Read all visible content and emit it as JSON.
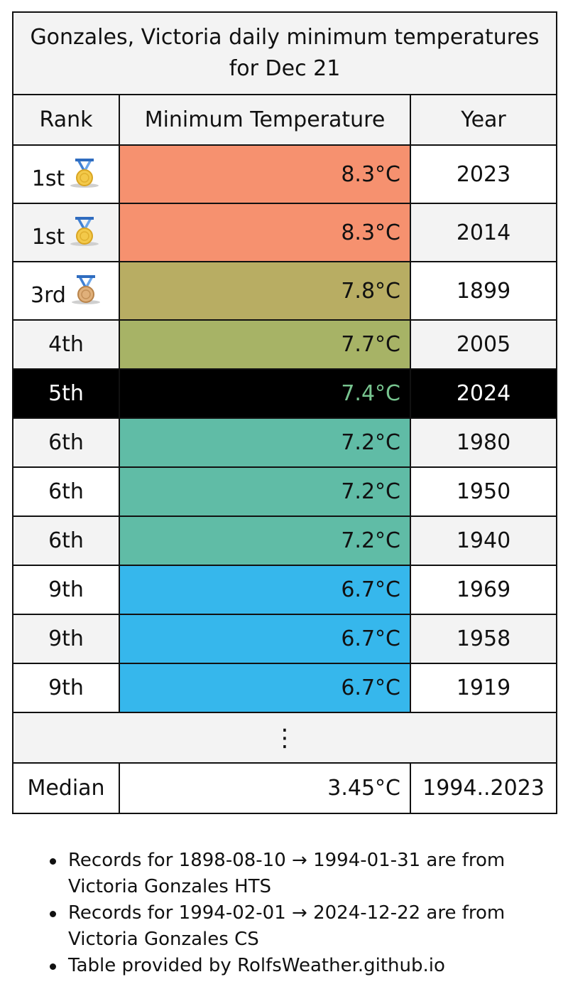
{
  "title": "Gonzales, Victoria daily minimum temperatures for Dec 21",
  "headers": {
    "rank": "Rank",
    "temp": "Minimum Temperature",
    "year": "Year"
  },
  "rows": [
    {
      "rank": "1st",
      "medal": "gold",
      "temp": "8.3°C",
      "year": "2023",
      "color": "#f6916f"
    },
    {
      "rank": "1st",
      "medal": "gold",
      "temp": "8.3°C",
      "year": "2014",
      "color": "#f6916f"
    },
    {
      "rank": "3rd",
      "medal": "bronze",
      "temp": "7.8°C",
      "year": "1899",
      "color": "#b8ad63"
    },
    {
      "rank": "4th",
      "medal": "",
      "temp": "7.7°C",
      "year": "2005",
      "color": "#a7b366"
    },
    {
      "rank": "5th",
      "medal": "",
      "temp": "7.4°C",
      "year": "2024",
      "color": "#000000",
      "highlight": true
    },
    {
      "rank": "6th",
      "medal": "",
      "temp": "7.2°C",
      "year": "1980",
      "color": "#60bca6"
    },
    {
      "rank": "6th",
      "medal": "",
      "temp": "7.2°C",
      "year": "1950",
      "color": "#60bca6"
    },
    {
      "rank": "6th",
      "medal": "",
      "temp": "7.2°C",
      "year": "1940",
      "color": "#60bca6"
    },
    {
      "rank": "9th",
      "medal": "",
      "temp": "6.7°C",
      "year": "1969",
      "color": "#36b7ec"
    },
    {
      "rank": "9th",
      "medal": "",
      "temp": "6.7°C",
      "year": "1958",
      "color": "#36b7ec"
    },
    {
      "rank": "9th",
      "medal": "",
      "temp": "6.7°C",
      "year": "1919",
      "color": "#36b7ec"
    }
  ],
  "ellipsis": "⋮",
  "median": {
    "label": "Median",
    "temp": "3.45°C",
    "years": "1994..2023"
  },
  "notes": [
    "Records for 1898-08-10 → 1994-01-31 are from Victoria Gonzales HTS",
    "Records for 1994-02-01 → 2024-12-22 are from Victoria Gonzales CS",
    "Table provided by RolfsWeather.github.io"
  ],
  "chart_data": {
    "type": "table",
    "columns": [
      "Rank",
      "Minimum Temperature",
      "Year"
    ],
    "rows": [
      [
        "1st",
        8.3,
        2023
      ],
      [
        "1st",
        8.3,
        2014
      ],
      [
        "3rd",
        7.8,
        1899
      ],
      [
        "4th",
        7.7,
        2005
      ],
      [
        "5th",
        7.4,
        2024
      ],
      [
        "6th",
        7.2,
        1980
      ],
      [
        "6th",
        7.2,
        1950
      ],
      [
        "6th",
        7.2,
        1940
      ],
      [
        "9th",
        6.7,
        1969
      ],
      [
        "9th",
        6.7,
        1958
      ],
      [
        "9th",
        6.7,
        1919
      ]
    ],
    "median": {
      "value": 3.45,
      "period": "1994..2023"
    },
    "unit": "°C"
  }
}
